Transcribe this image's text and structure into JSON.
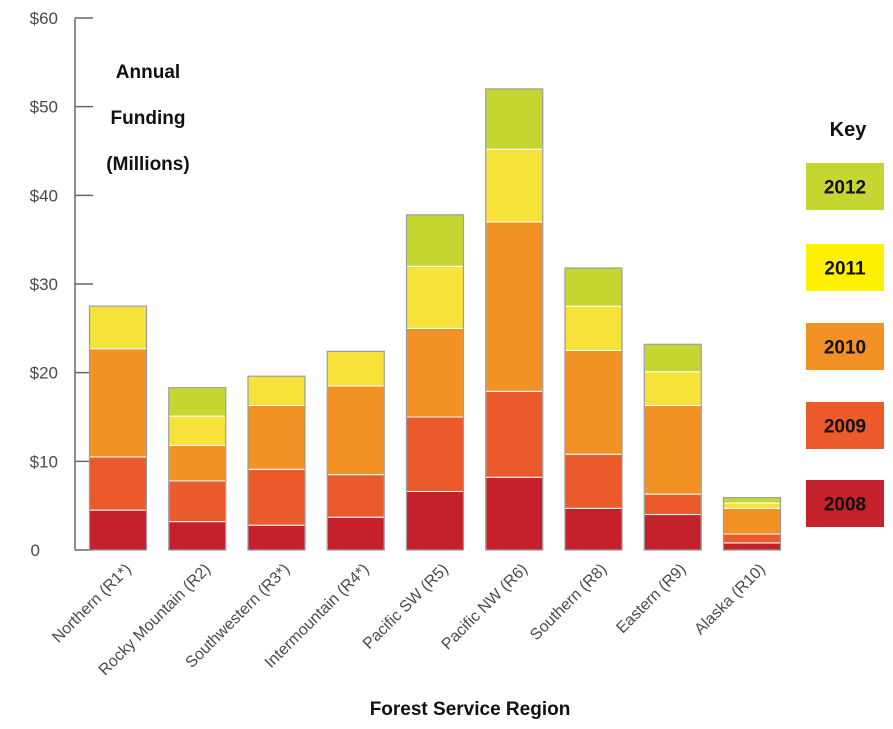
{
  "chart_data": {
    "type": "bar",
    "stacked": true,
    "title_lines": [
      "Annual",
      "Funding",
      "(Millions)"
    ],
    "xlabel": "Forest Service Region",
    "ylim": [
      0,
      60
    ],
    "yticks": [
      0,
      10,
      20,
      30,
      40,
      50,
      60
    ],
    "ytick_labels": [
      "0",
      "$10",
      "$20",
      "$30",
      "$40",
      "$50",
      "$60"
    ],
    "categories": [
      "Northern (R1*)",
      "Rocky Mountain (R2)",
      "Southwestern (R3*)",
      "Intermountain (R4*)",
      "Pacific SW (R5)",
      "Pacific NW (R6)",
      "Southern (R8)",
      "Eastern (R9)",
      "Alaska (R10)"
    ],
    "series": [
      {
        "name": "2008",
        "color": "#c4212c",
        "values": [
          4.5,
          3.2,
          2.8,
          3.7,
          6.6,
          8.2,
          4.7,
          4.0,
          0.8
        ]
      },
      {
        "name": "2009",
        "color": "#ea5a2a",
        "values": [
          6.0,
          4.6,
          6.3,
          4.8,
          8.4,
          9.7,
          6.1,
          2.3,
          1.0
        ]
      },
      {
        "name": "2010",
        "color": "#f39224",
        "values": [
          12.2,
          4.0,
          7.2,
          10.0,
          10.0,
          19.1,
          11.7,
          10.0,
          2.9
        ]
      },
      {
        "name": "2011",
        "color": "#f7e23a",
        "values": [
          4.8,
          3.3,
          3.3,
          3.9,
          7.0,
          8.2,
          5.0,
          3.8,
          0.6
        ]
      },
      {
        "name": "2012",
        "color": "#c6d631",
        "values": [
          0,
          3.2,
          0,
          0,
          5.8,
          6.8,
          4.3,
          3.1,
          0.6
        ]
      }
    ],
    "legend": {
      "title": "Key",
      "position": "right",
      "entries": [
        {
          "label": "2012",
          "color": "#c6d631"
        },
        {
          "label": "2011",
          "color": "#fff200"
        },
        {
          "label": "2010",
          "color": "#f39224"
        },
        {
          "label": "2009",
          "color": "#ea5a2a"
        },
        {
          "label": "2008",
          "color": "#c4212c"
        }
      ]
    },
    "grid": false
  }
}
